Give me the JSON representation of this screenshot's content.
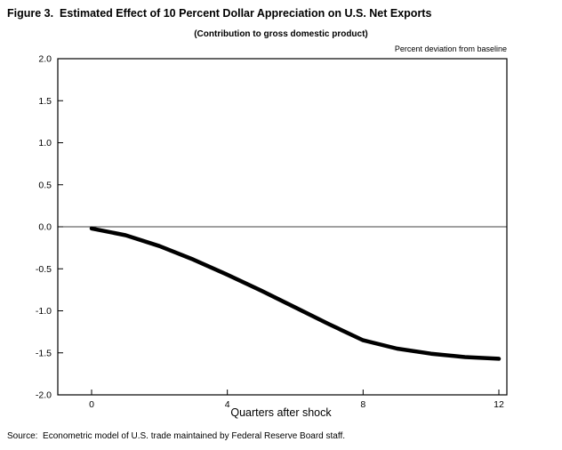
{
  "figure": {
    "title": "Figure 3.  Estimated Effect of 10 Percent Dollar Appreciation on U.S. Net Exports",
    "subtitle": "(Contribution to gross domestic product)",
    "units_label": "Percent deviation from baseline",
    "xlabel": "Quarters after shock",
    "source": "Source:  Econometric model of U.S. trade maintained by Federal Reserve Board staff."
  },
  "chart_data": {
    "type": "line",
    "title": "Estimated Effect of 10 Percent Dollar Appreciation on U.S. Net Exports",
    "subtitle": "Contribution to gross domestic product",
    "xlabel": "Quarters after shock",
    "ylabel": "Percent deviation from baseline",
    "x": [
      0,
      1,
      2,
      3,
      4,
      5,
      6,
      7,
      8,
      9,
      10,
      11,
      12
    ],
    "values": [
      -0.02,
      -0.1,
      -0.23,
      -0.39,
      -0.57,
      -0.76,
      -0.96,
      -1.16,
      -1.35,
      -1.45,
      -1.51,
      -1.55,
      -1.57
    ],
    "xlim": [
      0,
      12
    ],
    "ylim": [
      -2.0,
      2.0
    ],
    "xticks": [
      0,
      4,
      8,
      12
    ],
    "yticks": [
      2.0,
      1.5,
      1.0,
      0.5,
      0.0,
      -0.5,
      -1.0,
      -1.5,
      -2.0
    ],
    "grid": false,
    "zero_line": true,
    "line_color": "#000000",
    "line_width": 4.5,
    "legend_position": "none"
  }
}
